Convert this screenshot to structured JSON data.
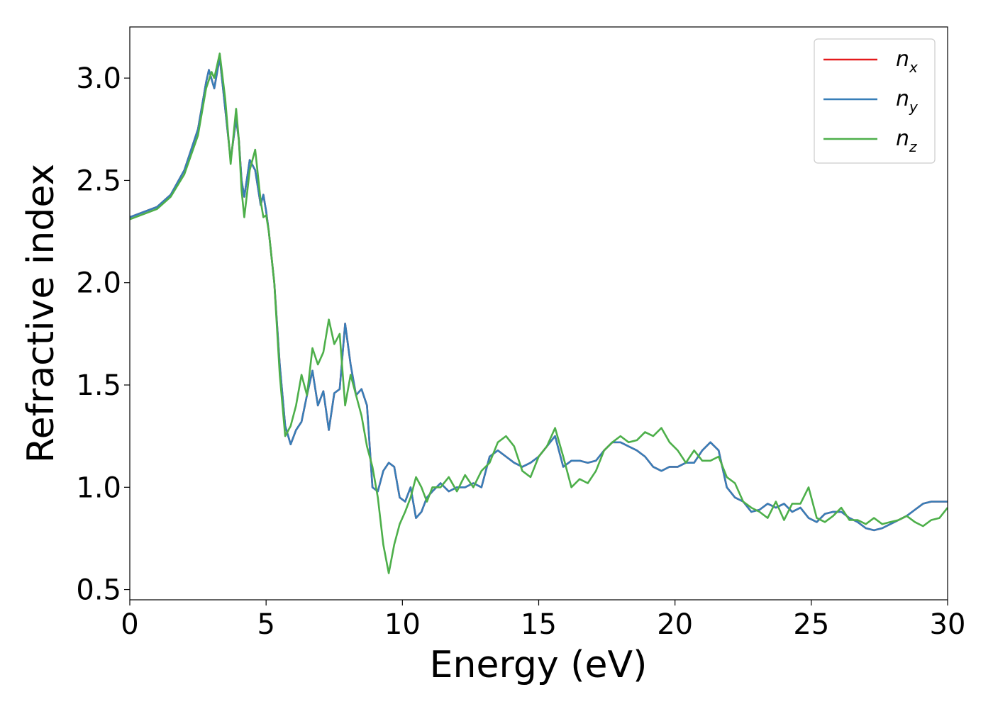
{
  "chart_data": {
    "type": "line",
    "xlabel": "Energy (eV)",
    "ylabel": "Refractive index",
    "xlim": [
      0,
      30
    ],
    "ylim": [
      0.45,
      3.25
    ],
    "xticks": [
      0,
      5,
      10,
      15,
      20,
      25,
      30
    ],
    "xtick_labels": [
      "0",
      "5",
      "10",
      "15",
      "20",
      "25",
      "30"
    ],
    "yticks": [
      0.5,
      1.0,
      1.5,
      2.0,
      2.5,
      3.0
    ],
    "ytick_labels": [
      "0.5",
      "1.0",
      "1.5",
      "2.0",
      "2.5",
      "3.0"
    ],
    "grid": false,
    "legend_position": "upper-right",
    "series": [
      {
        "name": "n_x",
        "legend_base": "n",
        "legend_sub": "x",
        "color": "#e41a1c",
        "x": [
          0,
          1,
          1.5,
          2,
          2.5,
          2.8,
          2.9,
          3.1,
          3.3,
          3.5,
          3.7,
          3.9,
          4.0,
          4.1,
          4.2,
          4.4,
          4.6,
          4.8,
          4.9,
          5.0,
          5.1,
          5.3,
          5.5,
          5.7,
          5.9,
          6.1,
          6.3,
          6.5,
          6.7,
          6.9,
          7.1,
          7.3,
          7.5,
          7.7,
          7.9,
          8.1,
          8.3,
          8.5,
          8.7,
          8.9,
          9.1,
          9.3,
          9.5,
          9.7,
          9.9,
          10.1,
          10.3,
          10.5,
          10.7,
          10.9,
          11.1,
          11.4,
          11.7,
          12.0,
          12.3,
          12.6,
          12.9,
          13.2,
          13.5,
          13.8,
          14.1,
          14.4,
          14.7,
          15.0,
          15.3,
          15.6,
          15.9,
          16.2,
          16.5,
          16.8,
          17.1,
          17.4,
          17.7,
          18.0,
          18.3,
          18.6,
          18.9,
          19.2,
          19.5,
          19.8,
          20.1,
          20.4,
          20.7,
          21.0,
          21.3,
          21.6,
          21.9,
          22.2,
          22.5,
          22.8,
          23.1,
          23.4,
          23.7,
          24.0,
          24.3,
          24.6,
          24.9,
          25.2,
          25.5,
          25.8,
          26.1,
          26.4,
          26.7,
          27.0,
          27.3,
          27.6,
          27.9,
          28.2,
          28.5,
          28.8,
          29.1,
          29.4,
          29.7,
          30.0
        ],
        "y": [
          2.32,
          2.37,
          2.43,
          2.55,
          2.75,
          2.98,
          3.04,
          2.95,
          3.1,
          2.85,
          2.6,
          2.8,
          2.7,
          2.5,
          2.42,
          2.6,
          2.55,
          2.38,
          2.43,
          2.35,
          2.25,
          2.0,
          1.6,
          1.3,
          1.21,
          1.28,
          1.32,
          1.45,
          1.57,
          1.4,
          1.47,
          1.28,
          1.46,
          1.48,
          1.8,
          1.6,
          1.45,
          1.48,
          1.4,
          1.0,
          0.98,
          1.08,
          1.12,
          1.1,
          0.95,
          0.93,
          1.0,
          0.85,
          0.88,
          0.95,
          0.98,
          1.02,
          0.98,
          1.0,
          1.0,
          1.02,
          1.0,
          1.15,
          1.18,
          1.15,
          1.12,
          1.1,
          1.12,
          1.15,
          1.2,
          1.25,
          1.1,
          1.13,
          1.13,
          1.12,
          1.13,
          1.18,
          1.22,
          1.22,
          1.2,
          1.18,
          1.15,
          1.1,
          1.08,
          1.1,
          1.1,
          1.12,
          1.12,
          1.18,
          1.22,
          1.18,
          1.0,
          0.95,
          0.93,
          0.88,
          0.89,
          0.92,
          0.9,
          0.92,
          0.88,
          0.9,
          0.85,
          0.83,
          0.87,
          0.88,
          0.88,
          0.85,
          0.83,
          0.8,
          0.79,
          0.8,
          0.82,
          0.84,
          0.86,
          0.89,
          0.92,
          0.93,
          0.93,
          0.93
        ]
      },
      {
        "name": "n_y",
        "legend_base": "n",
        "legend_sub": "y",
        "color": "#377eb8",
        "x": [
          0,
          1,
          1.5,
          2,
          2.5,
          2.8,
          2.9,
          3.1,
          3.3,
          3.5,
          3.7,
          3.9,
          4.0,
          4.1,
          4.2,
          4.4,
          4.6,
          4.8,
          4.9,
          5.0,
          5.1,
          5.3,
          5.5,
          5.7,
          5.9,
          6.1,
          6.3,
          6.5,
          6.7,
          6.9,
          7.1,
          7.3,
          7.5,
          7.7,
          7.9,
          8.1,
          8.3,
          8.5,
          8.7,
          8.9,
          9.1,
          9.3,
          9.5,
          9.7,
          9.9,
          10.1,
          10.3,
          10.5,
          10.7,
          10.9,
          11.1,
          11.4,
          11.7,
          12.0,
          12.3,
          12.6,
          12.9,
          13.2,
          13.5,
          13.8,
          14.1,
          14.4,
          14.7,
          15.0,
          15.3,
          15.6,
          15.9,
          16.2,
          16.5,
          16.8,
          17.1,
          17.4,
          17.7,
          18.0,
          18.3,
          18.6,
          18.9,
          19.2,
          19.5,
          19.8,
          20.1,
          20.4,
          20.7,
          21.0,
          21.3,
          21.6,
          21.9,
          22.2,
          22.5,
          22.8,
          23.1,
          23.4,
          23.7,
          24.0,
          24.3,
          24.6,
          24.9,
          25.2,
          25.5,
          25.8,
          26.1,
          26.4,
          26.7,
          27.0,
          27.3,
          27.6,
          27.9,
          28.2,
          28.5,
          28.8,
          29.1,
          29.4,
          29.7,
          30.0
        ],
        "y": [
          2.32,
          2.37,
          2.43,
          2.55,
          2.75,
          2.98,
          3.04,
          2.95,
          3.1,
          2.85,
          2.6,
          2.8,
          2.7,
          2.5,
          2.42,
          2.6,
          2.55,
          2.38,
          2.43,
          2.35,
          2.25,
          2.0,
          1.6,
          1.3,
          1.21,
          1.28,
          1.32,
          1.45,
          1.57,
          1.4,
          1.47,
          1.28,
          1.46,
          1.48,
          1.8,
          1.6,
          1.45,
          1.48,
          1.4,
          1.0,
          0.98,
          1.08,
          1.12,
          1.1,
          0.95,
          0.93,
          1.0,
          0.85,
          0.88,
          0.95,
          0.98,
          1.02,
          0.98,
          1.0,
          1.0,
          1.02,
          1.0,
          1.15,
          1.18,
          1.15,
          1.12,
          1.1,
          1.12,
          1.15,
          1.2,
          1.25,
          1.1,
          1.13,
          1.13,
          1.12,
          1.13,
          1.18,
          1.22,
          1.22,
          1.2,
          1.18,
          1.15,
          1.1,
          1.08,
          1.1,
          1.1,
          1.12,
          1.12,
          1.18,
          1.22,
          1.18,
          1.0,
          0.95,
          0.93,
          0.88,
          0.89,
          0.92,
          0.9,
          0.92,
          0.88,
          0.9,
          0.85,
          0.83,
          0.87,
          0.88,
          0.88,
          0.85,
          0.83,
          0.8,
          0.79,
          0.8,
          0.82,
          0.84,
          0.86,
          0.89,
          0.92,
          0.93,
          0.93,
          0.93
        ]
      },
      {
        "name": "n_z",
        "legend_base": "n",
        "legend_sub": "z",
        "color": "#4daf4a",
        "x": [
          0,
          1,
          1.5,
          2,
          2.5,
          2.8,
          3.0,
          3.1,
          3.3,
          3.5,
          3.7,
          3.9,
          4.0,
          4.1,
          4.2,
          4.4,
          4.6,
          4.8,
          4.9,
          5.0,
          5.1,
          5.3,
          5.5,
          5.7,
          5.9,
          6.1,
          6.3,
          6.5,
          6.7,
          6.9,
          7.1,
          7.3,
          7.5,
          7.7,
          7.9,
          8.1,
          8.3,
          8.5,
          8.7,
          8.9,
          9.1,
          9.3,
          9.5,
          9.7,
          9.9,
          10.1,
          10.3,
          10.5,
          10.7,
          10.9,
          11.1,
          11.4,
          11.7,
          12.0,
          12.3,
          12.6,
          12.9,
          13.2,
          13.5,
          13.8,
          14.1,
          14.4,
          14.7,
          15.0,
          15.3,
          15.6,
          15.9,
          16.2,
          16.5,
          16.8,
          17.1,
          17.4,
          17.7,
          18.0,
          18.3,
          18.6,
          18.9,
          19.2,
          19.5,
          19.8,
          20.1,
          20.4,
          20.7,
          21.0,
          21.3,
          21.6,
          21.9,
          22.2,
          22.5,
          22.8,
          23.1,
          23.4,
          23.7,
          24.0,
          24.3,
          24.6,
          24.9,
          25.2,
          25.5,
          25.8,
          26.1,
          26.4,
          26.7,
          27.0,
          27.3,
          27.6,
          27.9,
          28.2,
          28.5,
          28.8,
          29.1,
          29.4,
          29.7,
          30.0
        ],
        "y": [
          2.31,
          2.36,
          2.42,
          2.53,
          2.72,
          2.95,
          3.03,
          3.0,
          3.12,
          2.9,
          2.58,
          2.85,
          2.7,
          2.45,
          2.32,
          2.55,
          2.65,
          2.4,
          2.32,
          2.33,
          2.25,
          2.0,
          1.55,
          1.25,
          1.3,
          1.4,
          1.55,
          1.45,
          1.68,
          1.6,
          1.66,
          1.82,
          1.7,
          1.75,
          1.4,
          1.55,
          1.45,
          1.35,
          1.2,
          1.1,
          0.95,
          0.72,
          0.58,
          0.72,
          0.82,
          0.88,
          0.95,
          1.05,
          1.0,
          0.93,
          1.0,
          1.0,
          1.05,
          0.98,
          1.06,
          1.0,
          1.08,
          1.12,
          1.22,
          1.25,
          1.2,
          1.08,
          1.05,
          1.15,
          1.2,
          1.29,
          1.15,
          1.0,
          1.04,
          1.02,
          1.08,
          1.18,
          1.22,
          1.25,
          1.22,
          1.23,
          1.27,
          1.25,
          1.29,
          1.22,
          1.18,
          1.12,
          1.18,
          1.13,
          1.13,
          1.15,
          1.05,
          1.02,
          0.93,
          0.9,
          0.88,
          0.85,
          0.93,
          0.84,
          0.92,
          0.92,
          1.0,
          0.85,
          0.83,
          0.86,
          0.9,
          0.84,
          0.84,
          0.82,
          0.85,
          0.82,
          0.83,
          0.84,
          0.86,
          0.83,
          0.81,
          0.84,
          0.85,
          0.9
        ]
      }
    ]
  }
}
